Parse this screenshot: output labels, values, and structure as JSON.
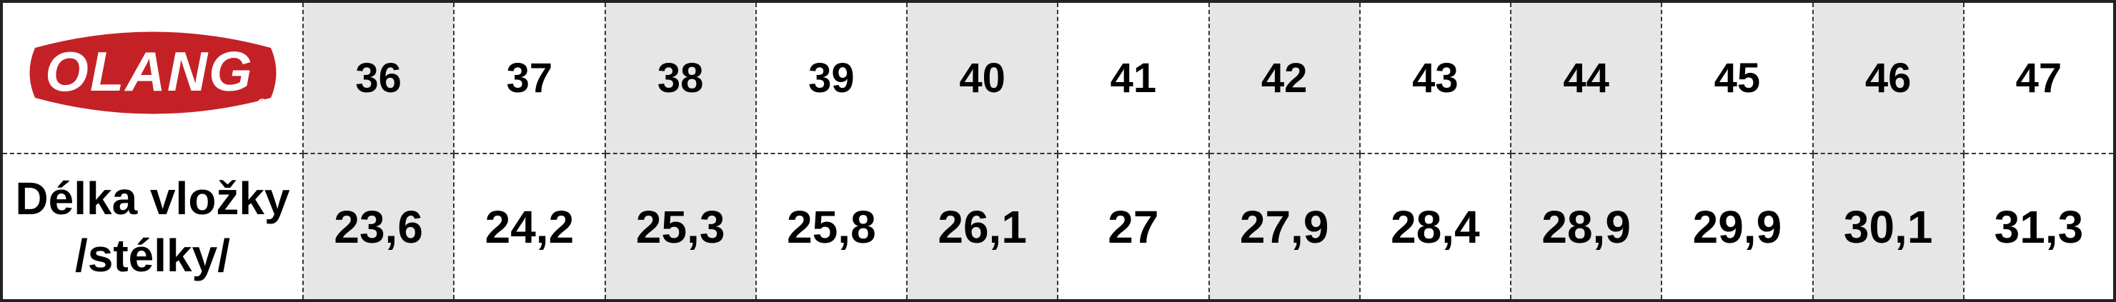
{
  "brand": {
    "logo_text": "OLANG",
    "logo_color": "#c42126"
  },
  "table": {
    "sizes": [
      "36",
      "37",
      "38",
      "39",
      "40",
      "41",
      "42",
      "43",
      "44",
      "45",
      "46",
      "47"
    ],
    "row_label_line1": "Délka vložky",
    "row_label_line2": "/stélky/",
    "lengths": [
      "23,6",
      "24,2",
      "25,3",
      "25,8",
      "26,1",
      "27",
      "27,9",
      "28,4",
      "28,9",
      "29,9",
      "30,1",
      "31,3"
    ],
    "shade_color": "#e6e6e6"
  }
}
